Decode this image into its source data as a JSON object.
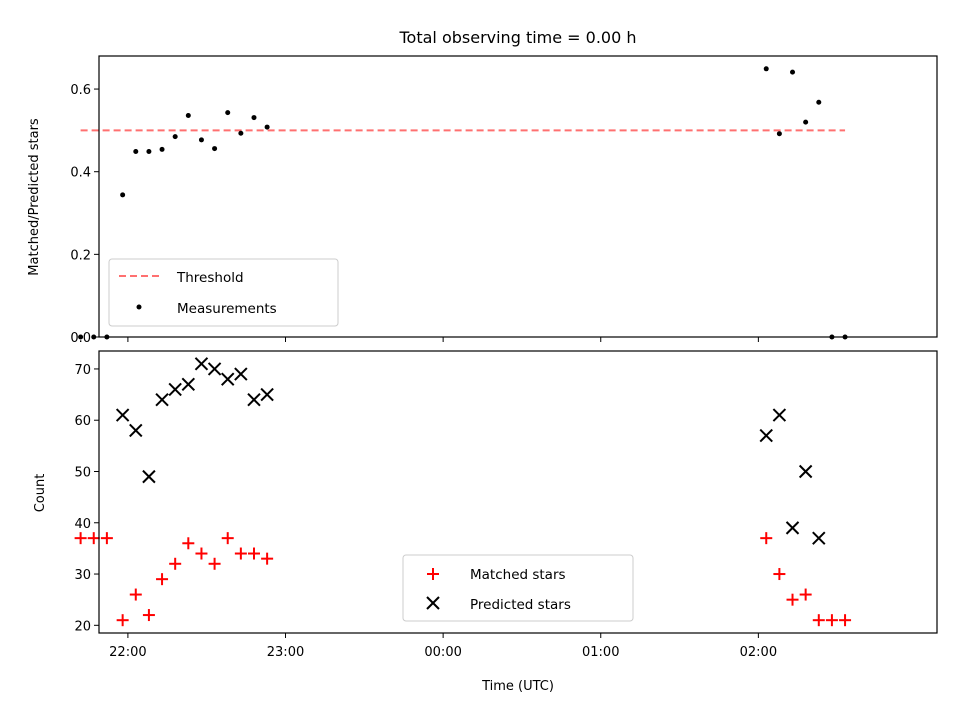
{
  "chart_data": [
    {
      "type": "scatter",
      "title": "Total observing time = 0.00 h",
      "ylabel": "Matched/Predicted stars",
      "ylim": [
        0.0,
        0.68
      ],
      "yticks": [
        0.0,
        0.2,
        0.4,
        0.6
      ],
      "ytick_labels": [
        "0.0",
        "0.2",
        "0.4",
        "0.6"
      ],
      "xlim": [
        "21:49",
        "03:08"
      ],
      "grid": false,
      "legend_position": "lower-left",
      "threshold": {
        "name": "Threshold",
        "value": 0.5,
        "x_start": "21:42",
        "x_end": "02:33",
        "color": "#ff7070",
        "style": "dashed"
      },
      "series": [
        {
          "name": "Measurements",
          "color": "#000000",
          "marker": "dot",
          "points": [
            [
              "21:42",
              0.0
            ],
            [
              "21:47",
              0.0
            ],
            [
              "21:52",
              0.0
            ],
            [
              "21:58",
              0.344
            ],
            [
              "22:03",
              0.449
            ],
            [
              "22:08",
              0.449
            ],
            [
              "22:13",
              0.454
            ],
            [
              "22:18",
              0.485
            ],
            [
              "22:23",
              0.536
            ],
            [
              "22:28",
              0.477
            ],
            [
              "22:33",
              0.456
            ],
            [
              "22:38",
              0.543
            ],
            [
              "22:43",
              0.493
            ],
            [
              "22:48",
              0.531
            ],
            [
              "22:53",
              0.508
            ],
            [
              "02:03",
              0.649
            ],
            [
              "02:08",
              0.492
            ],
            [
              "02:13",
              0.641
            ],
            [
              "02:18",
              0.52
            ],
            [
              "02:23",
              0.568
            ],
            [
              "02:28",
              0.0
            ],
            [
              "02:33",
              0.0
            ]
          ]
        }
      ]
    },
    {
      "type": "scatter",
      "title": "",
      "xlabel": "Time (UTC)",
      "ylabel": "Count",
      "ylim": [
        18.5,
        73.5
      ],
      "yticks": [
        20,
        30,
        40,
        50,
        60,
        70
      ],
      "ytick_labels": [
        "20",
        "30",
        "40",
        "50",
        "60",
        "70"
      ],
      "xticks": [
        "22:00",
        "23:00",
        "00:00",
        "01:00",
        "02:00"
      ],
      "xtick_labels": [
        "22:00",
        "23:00",
        "00:00",
        "01:00",
        "02:00"
      ],
      "xlim": [
        "21:49",
        "03:08"
      ],
      "grid": false,
      "legend_position": "lower-center",
      "series": [
        {
          "name": "Matched stars",
          "color": "#ff0000",
          "marker": "plus",
          "points": [
            [
              "21:42",
              37
            ],
            [
              "21:47",
              37
            ],
            [
              "21:52",
              37
            ],
            [
              "21:58",
              21
            ],
            [
              "22:03",
              26
            ],
            [
              "22:08",
              22
            ],
            [
              "22:13",
              29
            ],
            [
              "22:18",
              32
            ],
            [
              "22:23",
              36
            ],
            [
              "22:28",
              34
            ],
            [
              "22:33",
              32
            ],
            [
              "22:38",
              37
            ],
            [
              "22:43",
              34
            ],
            [
              "22:48",
              34
            ],
            [
              "22:53",
              33
            ],
            [
              "02:03",
              37
            ],
            [
              "02:08",
              30
            ],
            [
              "02:13",
              25
            ],
            [
              "02:18",
              26
            ],
            [
              "02:23",
              21
            ],
            [
              "02:28",
              21
            ],
            [
              "02:33",
              21
            ]
          ]
        },
        {
          "name": "Predicted stars",
          "color": "#000000",
          "marker": "x",
          "points": [
            [
              "21:58",
              61
            ],
            [
              "22:03",
              58
            ],
            [
              "22:08",
              49
            ],
            [
              "22:13",
              64
            ],
            [
              "22:18",
              66
            ],
            [
              "22:23",
              67
            ],
            [
              "22:28",
              71
            ],
            [
              "22:33",
              70
            ],
            [
              "22:38",
              68
            ],
            [
              "22:43",
              69
            ],
            [
              "22:48",
              64
            ],
            [
              "22:53",
              65
            ],
            [
              "02:03",
              57
            ],
            [
              "02:08",
              61
            ],
            [
              "02:13",
              39
            ],
            [
              "02:18",
              50
            ],
            [
              "02:23",
              37
            ]
          ]
        }
      ]
    }
  ]
}
